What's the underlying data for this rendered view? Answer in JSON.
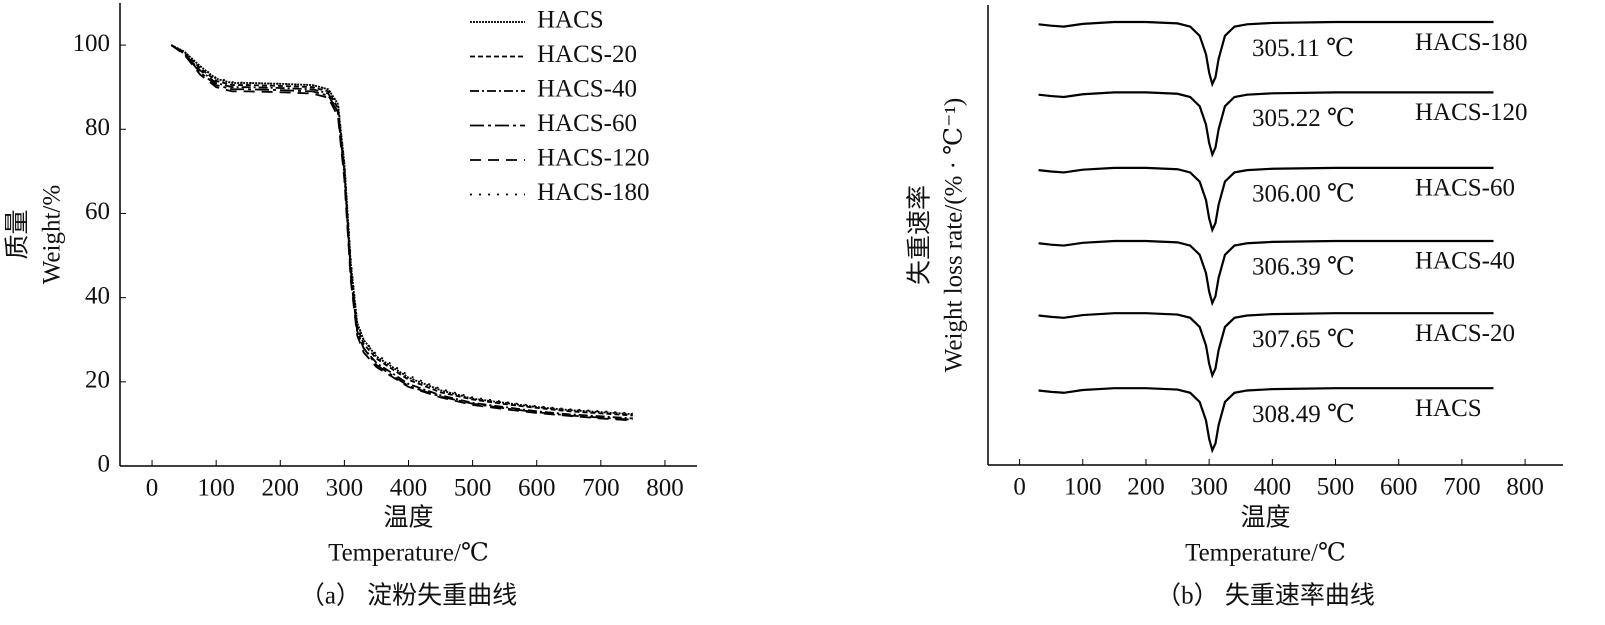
{
  "chart_data": [
    {
      "type": "line",
      "ylabel": "质量",
      "ylabel_en": "Weight/%",
      "xlabel": "温度",
      "xlabel_en": "Temperature/℃",
      "caption": "（a） 淀粉失重曲线",
      "x": [
        30,
        50,
        75,
        100,
        125,
        150,
        200,
        250,
        275,
        290,
        300,
        310,
        320,
        330,
        350,
        400,
        450,
        500,
        550,
        600,
        650,
        700,
        750
      ],
      "series": [
        {
          "name": "HACS",
          "color": "#000000",
          "values": [
            100,
            98.5,
            95,
            92,
            91,
            91,
            90.8,
            90.5,
            89.5,
            86,
            72,
            48,
            34,
            30,
            26,
            21,
            18,
            16,
            15,
            14,
            13.3,
            12.8,
            12.3
          ]
        },
        {
          "name": "HACS-20",
          "color": "#000000",
          "values": [
            100,
            98.3,
            94.5,
            91.5,
            90.5,
            90.5,
            90.3,
            90,
            89,
            85,
            70,
            46,
            33,
            29,
            25.5,
            20.5,
            17.5,
            15.8,
            14.7,
            13.8,
            13,
            12.5,
            12
          ]
        },
        {
          "name": "HACS-40",
          "color": "#000000",
          "values": [
            100,
            98,
            94,
            91,
            90,
            90,
            89.8,
            89.5,
            88.5,
            84,
            69,
            45,
            32,
            28,
            24.5,
            19.5,
            16.8,
            15,
            14,
            13,
            12.3,
            11.8,
            11.3
          ]
        },
        {
          "name": "HACS-60",
          "color": "#000000",
          "values": [
            100,
            98,
            93.5,
            90.5,
            89.5,
            89.5,
            89.3,
            89,
            88,
            84,
            70,
            47,
            32,
            28,
            24,
            19,
            16.5,
            14.8,
            13.7,
            12.8,
            12,
            11.5,
            11
          ]
        },
        {
          "name": "HACS-120",
          "color": "#000000",
          "values": [
            100,
            97.8,
            93,
            90,
            89,
            89,
            88.8,
            88.5,
            87.5,
            83,
            68,
            44,
            31,
            27,
            23.5,
            18.8,
            16.3,
            14.5,
            13.5,
            12.6,
            11.9,
            11.3,
            10.8
          ]
        },
        {
          "name": "HACS-180",
          "color": "#000000",
          "values": [
            100,
            98.5,
            95,
            92.2,
            91.2,
            91,
            90.8,
            90.5,
            89.5,
            86,
            72,
            49,
            34,
            30,
            26.5,
            21.5,
            18.3,
            16.3,
            15.2,
            14.2,
            13.5,
            13,
            12.5
          ]
        }
      ],
      "xlim": [
        -50,
        850
      ],
      "xticks": [
        0,
        100,
        200,
        300,
        400,
        500,
        600,
        700,
        800
      ],
      "ylim": [
        0,
        110
      ],
      "yticks": [
        0,
        20,
        40,
        60,
        80,
        100
      ],
      "legend": "upper right"
    },
    {
      "type": "line",
      "ylabel": "失重速率",
      "ylabel_en": "Weight loss rate/(% · ℃⁻¹)",
      "xlabel": "温度",
      "xlabel_en": "Temperature/℃",
      "caption": "（b） 失重速率曲线",
      "x": [
        30,
        50,
        70,
        100,
        150,
        200,
        250,
        270,
        285,
        295,
        300,
        305,
        310,
        315,
        325,
        340,
        360,
        400,
        500,
        600,
        750
      ],
      "series": [
        {
          "name": "HACS",
          "peak_label": "308.49 ℃",
          "color": "#000000",
          "values": [
            16.2,
            15.9,
            15.7,
            16.3,
            16.7,
            16.7,
            16.4,
            15.7,
            13.7,
            9.7,
            5.7,
            3.2,
            4.7,
            8.7,
            13.7,
            15.7,
            16.2,
            16.5,
            16.7,
            16.7,
            16.7
          ]
        },
        {
          "name": "HACS-20",
          "peak_label": "307.65 ℃",
          "color": "#000000",
          "values": [
            32.5,
            32.2,
            32,
            32.6,
            33,
            33,
            32.7,
            32,
            30,
            26,
            22,
            19.5,
            21,
            25,
            30,
            32,
            32.5,
            32.8,
            33,
            33,
            33
          ]
        },
        {
          "name": "HACS-40",
          "peak_label": "306.39 ℃",
          "color": "#000000",
          "values": [
            48.2,
            47.9,
            47.7,
            48.3,
            48.7,
            48.7,
            48.4,
            47.7,
            45.7,
            41.7,
            37.7,
            35.2,
            36.7,
            40.7,
            45.7,
            47.7,
            48.2,
            48.5,
            48.7,
            48.7,
            48.7
          ]
        },
        {
          "name": "HACS-60",
          "peak_label": "306.00 ℃",
          "color": "#000000",
          "values": [
            64.1,
            63.8,
            63.6,
            64.2,
            64.6,
            64.6,
            64.3,
            63.6,
            61.6,
            57.6,
            53.6,
            51.1,
            52.6,
            56.6,
            61.6,
            63.6,
            64.1,
            64.4,
            64.6,
            64.6,
            64.6
          ]
        },
        {
          "name": "HACS-120",
          "peak_label": "305.22 ℃",
          "color": "#000000",
          "values": [
            80.5,
            80.2,
            80,
            80.6,
            81,
            81,
            80.7,
            80,
            78,
            74,
            70,
            67.5,
            69,
            73,
            78,
            80,
            80.5,
            80.8,
            81,
            81,
            81
          ]
        },
        {
          "name": "HACS-180",
          "peak_label": "305.11 ℃",
          "color": "#000000",
          "values": [
            95.8,
            95.5,
            95.3,
            95.9,
            96.3,
            96.3,
            96,
            95.3,
            93.3,
            89.3,
            85.3,
            82.8,
            84.3,
            88.3,
            93.3,
            95.3,
            95.8,
            96.1,
            96.3,
            96.3,
            96.3
          ]
        }
      ],
      "xlim": [
        -50,
        860
      ],
      "xticks": [
        0,
        100,
        200,
        300,
        400,
        500,
        600,
        700,
        800
      ],
      "ylim": [
        0,
        100
      ]
    }
  ]
}
